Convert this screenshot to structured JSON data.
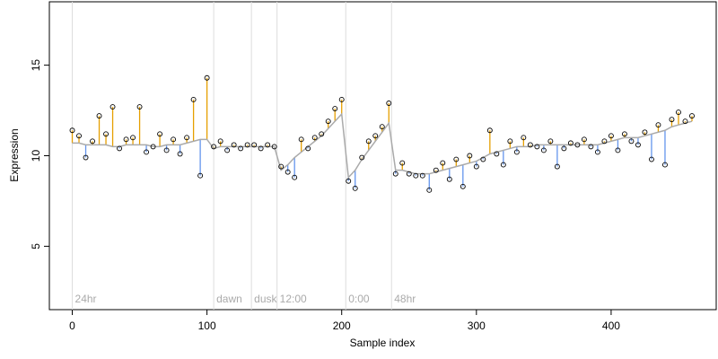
{
  "chart_data": {
    "type": "scatter",
    "xlabel": "Sample index",
    "ylabel": "Expression",
    "xlim": [
      -17,
      478
    ],
    "ylim": [
      1.5,
      18.5
    ],
    "xticks": [
      0,
      100,
      200,
      300,
      400
    ],
    "yticks": [
      5,
      10,
      15
    ],
    "above_color": "#e69f00",
    "below_color": "#6495ed",
    "fit_color": "#aaaaaa",
    "marker_color": "#dddddd",
    "markers": [
      {
        "x": 0,
        "label": "24hr"
      },
      {
        "x": 105,
        "label": "dawn"
      },
      {
        "x": 133,
        "label": "dusk"
      },
      {
        "x": 152,
        "label": "12:00"
      },
      {
        "x": 203,
        "label": "0:00"
      },
      {
        "x": 237,
        "label": "48hr"
      }
    ],
    "x": [
      0,
      5,
      10,
      15,
      20,
      25,
      30,
      35,
      40,
      45,
      50,
      55,
      60,
      65,
      70,
      75,
      80,
      85,
      90,
      95,
      100,
      105,
      110,
      115,
      120,
      125,
      130,
      135,
      140,
      145,
      150,
      155,
      160,
      165,
      170,
      175,
      180,
      185,
      190,
      195,
      200,
      205,
      210,
      215,
      220,
      225,
      230,
      235,
      240,
      245,
      250,
      255,
      260,
      265,
      270,
      275,
      280,
      285,
      290,
      295,
      300,
      305,
      310,
      315,
      320,
      325,
      330,
      335,
      340,
      345,
      350,
      355,
      360,
      365,
      370,
      375,
      380,
      385,
      390,
      395,
      400,
      405,
      410,
      415,
      420,
      425,
      430,
      435,
      440,
      445,
      450,
      455,
      460
    ],
    "fit": [
      10.7,
      10.7,
      10.6,
      10.6,
      10.6,
      10.6,
      10.5,
      10.5,
      10.6,
      10.6,
      10.6,
      10.6,
      10.5,
      10.5,
      10.6,
      10.6,
      10.6,
      10.7,
      10.8,
      10.9,
      10.9,
      10.4,
      10.5,
      10.5,
      10.5,
      10.5,
      10.5,
      10.5,
      10.5,
      10.5,
      10.5,
      9.2,
      9.5,
      9.9,
      10.2,
      10.5,
      10.8,
      11.1,
      11.5,
      11.9,
      12.3,
      8.8,
      9.2,
      9.8,
      10.3,
      10.8,
      11.3,
      11.8,
      9.2,
      9.2,
      9.1,
      9.0,
      9.0,
      9.0,
      9.1,
      9.2,
      9.3,
      9.4,
      9.5,
      9.6,
      9.7,
      9.9,
      10.1,
      10.2,
      10.3,
      10.4,
      10.5,
      10.5,
      10.5,
      10.6,
      10.6,
      10.6,
      10.6,
      10.6,
      10.6,
      10.6,
      10.6,
      10.6,
      10.6,
      10.7,
      10.8,
      10.9,
      11.0,
      11.0,
      11.0,
      11.1,
      11.2,
      11.3,
      11.4,
      11.6,
      11.7,
      11.8,
      11.9
    ],
    "values": [
      11.4,
      11.1,
      9.9,
      10.8,
      12.2,
      11.2,
      12.7,
      10.4,
      10.9,
      11.0,
      12.7,
      10.2,
      10.5,
      11.2,
      10.3,
      10.9,
      10.1,
      11.0,
      13.1,
      8.9,
      14.3,
      10.5,
      10.8,
      10.3,
      10.6,
      10.4,
      10.6,
      10.6,
      10.4,
      10.6,
      10.5,
      9.4,
      9.1,
      8.8,
      10.9,
      10.4,
      11.0,
      11.2,
      11.9,
      12.6,
      13.1,
      8.6,
      8.2,
      9.9,
      10.8,
      11.1,
      11.6,
      12.9,
      9.0,
      9.6,
      9.0,
      8.9,
      8.9,
      8.1,
      9.2,
      9.6,
      8.7,
      9.8,
      8.3,
      10.0,
      9.4,
      9.8,
      11.4,
      10.1,
      9.5,
      10.8,
      10.2,
      11.0,
      10.6,
      10.5,
      10.3,
      10.8,
      9.4,
      10.4,
      10.7,
      10.6,
      10.9,
      10.5,
      10.2,
      10.8,
      11.1,
      10.3,
      11.2,
      10.8,
      10.6,
      11.3,
      9.8,
      11.7,
      9.5,
      12.0,
      12.4,
      11.9,
      12.2
    ]
  }
}
